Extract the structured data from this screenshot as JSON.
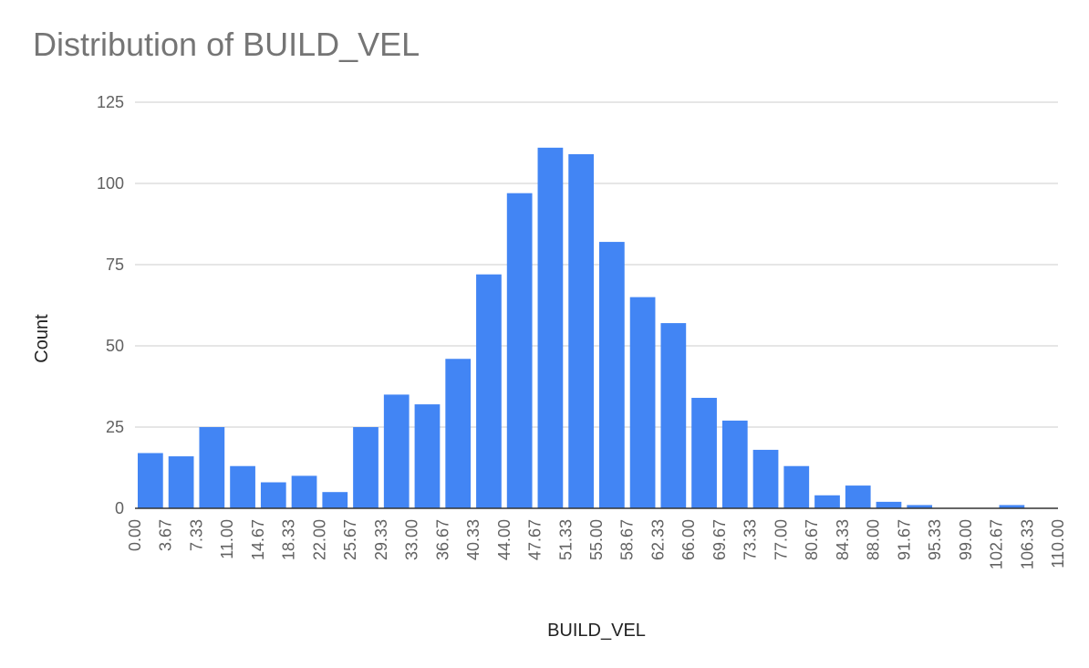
{
  "chart_data": {
    "type": "bar",
    "title": "Distribution of BUILD_VEL",
    "xlabel": "BUILD_VEL",
    "ylabel": "Count",
    "ylim": [
      0,
      125
    ],
    "yticks": [
      "0",
      "25",
      "50",
      "75",
      "100",
      "125"
    ],
    "xticks": [
      "0.00",
      "3.67",
      "7.33",
      "11.00",
      "14.67",
      "18.33",
      "22.00",
      "25.67",
      "29.33",
      "33.00",
      "36.67",
      "40.33",
      "44.00",
      "47.67",
      "51.33",
      "55.00",
      "58.67",
      "62.33",
      "66.00",
      "69.67",
      "73.33",
      "77.00",
      "80.67",
      "84.33",
      "88.00",
      "91.67",
      "95.33",
      "99.00",
      "102.67",
      "106.33",
      "110.00"
    ],
    "values": [
      17,
      16,
      25,
      13,
      8,
      10,
      5,
      25,
      35,
      32,
      46,
      72,
      97,
      111,
      109,
      82,
      65,
      57,
      34,
      27,
      18,
      13,
      4,
      7,
      2,
      1,
      0,
      0,
      1,
      0
    ],
    "grid": true,
    "legend": "none",
    "bar_color": "#4285f4",
    "grid_color": "#cccccc",
    "axis_color": "#333333"
  }
}
